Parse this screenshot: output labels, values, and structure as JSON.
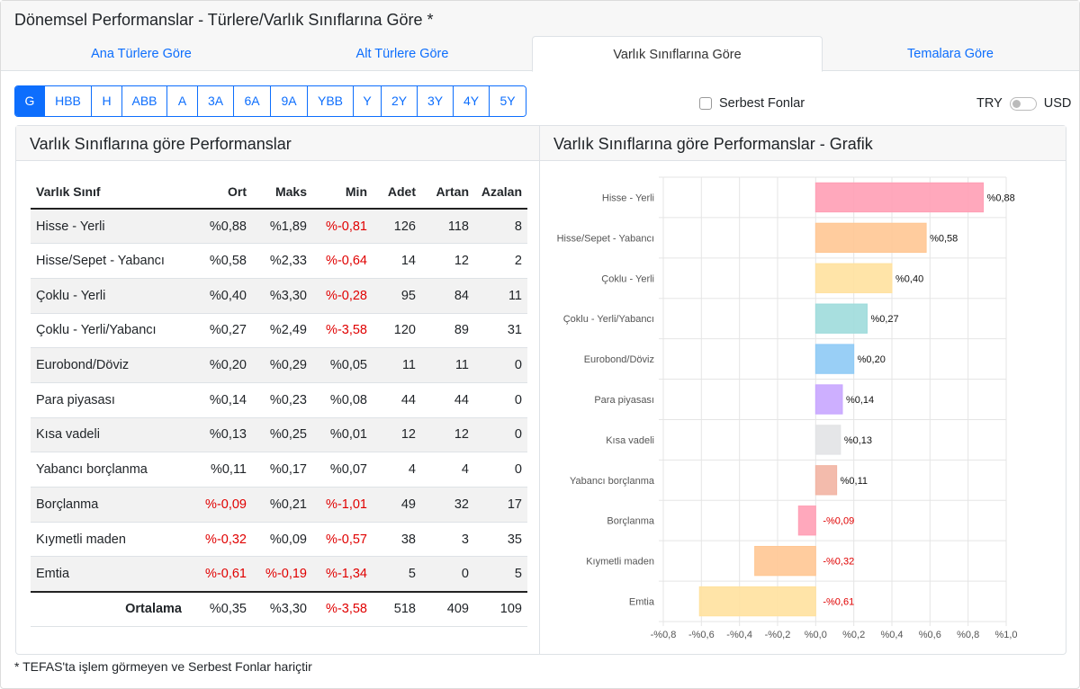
{
  "title": "Dönemsel Performanslar - Türlere/Varlık Sınıflarına Göre *",
  "tabs": [
    {
      "label": "Ana Türlere Göre",
      "active": false
    },
    {
      "label": "Alt Türlere Göre",
      "active": false
    },
    {
      "label": "Varlık Sınıflarına Göre",
      "active": true
    },
    {
      "label": "Temalara Göre",
      "active": false
    }
  ],
  "periods": [
    "G",
    "HBB",
    "H",
    "ABB",
    "A",
    "3A",
    "6A",
    "9A",
    "YBB",
    "Y",
    "2Y",
    "3Y",
    "4Y",
    "5Y"
  ],
  "active_period": "G",
  "serbest_label": "Serbest Fonlar",
  "currency": {
    "left": "TRY",
    "right": "USD"
  },
  "left_panel_title": "Varlık Sınıflarına göre Performanslar",
  "right_panel_title": "Varlık Sınıflarına göre Performanslar - Grafik",
  "table": {
    "headers": [
      "Varlık Sınıf",
      "Ort",
      "Maks",
      "Min",
      "Adet",
      "Artan",
      "Azalan"
    ],
    "rows": [
      [
        "Hisse - Yerli",
        "%0,88",
        "%1,89",
        "%-0,81",
        "126",
        "118",
        "8"
      ],
      [
        "Hisse/Sepet - Yabancı",
        "%0,58",
        "%2,33",
        "%-0,64",
        "14",
        "12",
        "2"
      ],
      [
        "Çoklu - Yerli",
        "%0,40",
        "%3,30",
        "%-0,28",
        "95",
        "84",
        "11"
      ],
      [
        "Çoklu - Yerli/Yabancı",
        "%0,27",
        "%2,49",
        "%-3,58",
        "120",
        "89",
        "31"
      ],
      [
        "Eurobond/Döviz",
        "%0,20",
        "%0,29",
        "%0,05",
        "11",
        "11",
        "0"
      ],
      [
        "Para piyasası",
        "%0,14",
        "%0,23",
        "%0,08",
        "44",
        "44",
        "0"
      ],
      [
        "Kısa vadeli",
        "%0,13",
        "%0,25",
        "%0,01",
        "12",
        "12",
        "0"
      ],
      [
        "Yabancı borçlanma",
        "%0,11",
        "%0,17",
        "%0,07",
        "4",
        "4",
        "0"
      ],
      [
        "Borçlanma",
        "%-0,09",
        "%0,21",
        "%-1,01",
        "49",
        "32",
        "17"
      ],
      [
        "Kıymetli maden",
        "%-0,32",
        "%0,09",
        "%-0,57",
        "38",
        "3",
        "35"
      ],
      [
        "Emtia",
        "%-0,61",
        "%-0,19",
        "%-1,34",
        "5",
        "0",
        "5"
      ]
    ],
    "footer": [
      "Ortalama",
      "%0,35",
      "%3,30",
      "%-3,58",
      "518",
      "409",
      "109"
    ]
  },
  "chart_data": {
    "type": "bar",
    "orientation": "horizontal",
    "title": "Varlık Sınıflarına göre Performanslar - Grafik",
    "categories": [
      "Hisse - Yerli",
      "Hisse/Sepet - Yabancı",
      "Çoklu - Yerli",
      "Çoklu - Yerli/Yabancı",
      "Eurobond/Döviz",
      "Para piyasası",
      "Kısa vadeli",
      "Yabancı borçlanma",
      "Borçlanma",
      "Kıymetli maden",
      "Emtia"
    ],
    "values": [
      0.88,
      0.58,
      0.4,
      0.27,
      0.2,
      0.14,
      0.13,
      0.11,
      -0.09,
      -0.32,
      -0.61
    ],
    "labels": [
      "%0,88",
      "%0,58",
      "%0,40",
      "%0,27",
      "%0,20",
      "%0,14",
      "%0,13",
      "%0,11",
      "-%0,09",
      "-%0,32",
      "-%0,61"
    ],
    "colors": [
      "#ff9fb5",
      "#ffc693",
      "#ffe19e",
      "#9edcdc",
      "#8ecaf5",
      "#c8a6ff",
      "#e2e3e5",
      "#f2b4a3",
      "#ff9fb5",
      "#ffc693",
      "#ffe19e"
    ],
    "xlim": [
      -0.8,
      1.0
    ],
    "xticks": [
      "-%0,8",
      "-%0,6",
      "-%0,4",
      "-%0,2",
      "%0,0",
      "%0,2",
      "%0,4",
      "%0,6",
      "%0,8",
      "%1,0"
    ],
    "grid": true
  },
  "footnote": "* TEFAS'ta işlem görmeyen ve Serbest Fonlar hariçtir"
}
